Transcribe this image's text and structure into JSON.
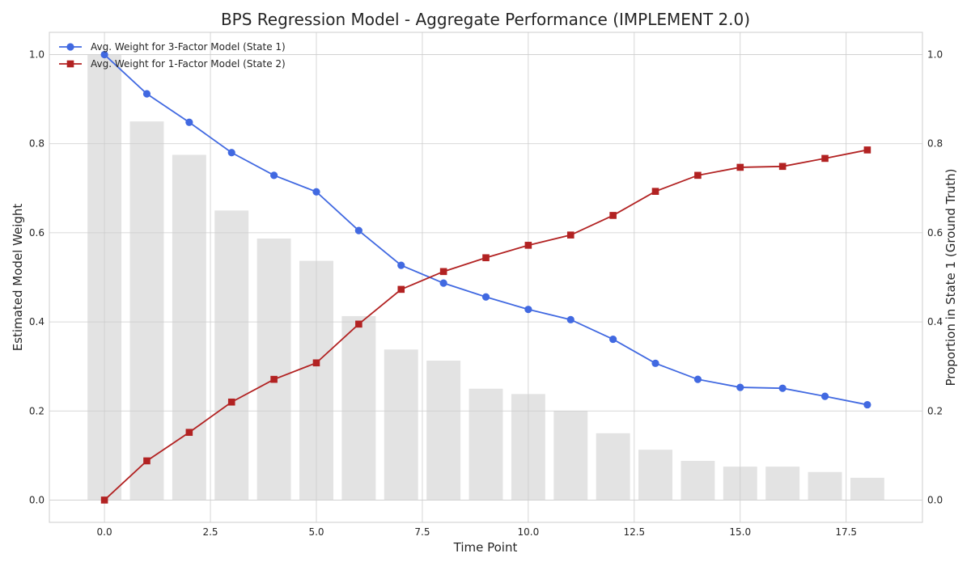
{
  "chart_data": {
    "type": "bar+line",
    "title": "BPS Regression Model - Aggregate Performance (IMPLEMENT 2.0)",
    "xlabel": "Time Point",
    "ylabel": "Estimated Model Weight",
    "ylabel_right": "Proportion in State 1 (Ground Truth)",
    "xlim": [
      -1.3,
      19.3
    ],
    "ylim": [
      -0.05,
      1.05
    ],
    "ylim_right": [
      -0.05,
      1.05
    ],
    "x_ticks": [
      0.0,
      2.5,
      5.0,
      7.5,
      10.0,
      12.5,
      15.0,
      17.5
    ],
    "x_tick_labels": [
      "0.0",
      "2.5",
      "5.0",
      "7.5",
      "10.0",
      "12.5",
      "15.0",
      "17.5"
    ],
    "y_ticks": [
      0.0,
      0.2,
      0.4,
      0.6,
      0.8,
      1.0
    ],
    "y_tick_labels": [
      "0.0",
      "0.2",
      "0.4",
      "0.6",
      "0.8",
      "1.0"
    ],
    "y_ticks_right": [
      0.0,
      0.2,
      0.4,
      0.6,
      0.8,
      1.0
    ],
    "y_tick_labels_right": [
      "0.0",
      "0.2",
      "0.4",
      "0.6",
      "0.8",
      "1.0"
    ],
    "grid": true,
    "legend_position": "top-left",
    "x": [
      0,
      1,
      2,
      3,
      4,
      5,
      6,
      7,
      8,
      9,
      10,
      11,
      12,
      13,
      14,
      15,
      16,
      17,
      18
    ],
    "bars": {
      "axis": "right",
      "color": "#e3e3e3",
      "values": [
        1.0,
        0.85,
        0.775,
        0.65,
        0.587,
        0.537,
        0.413,
        0.338,
        0.313,
        0.25,
        0.238,
        0.2,
        0.15,
        0.113,
        0.088,
        0.075,
        0.075,
        0.063,
        0.05
      ]
    },
    "series": [
      {
        "name": "Avg. Weight for 3-Factor Model (State 1)",
        "color": "#4169e1",
        "marker": "circle",
        "values": [
          1.0,
          0.912,
          0.848,
          0.78,
          0.729,
          0.692,
          0.605,
          0.527,
          0.487,
          0.456,
          0.428,
          0.405,
          0.361,
          0.307,
          0.271,
          0.253,
          0.251,
          0.233,
          0.214
        ]
      },
      {
        "name": "Avg. Weight for 1-Factor Model (State 2)",
        "color": "#b22222",
        "marker": "square",
        "values": [
          0.0,
          0.088,
          0.152,
          0.22,
          0.271,
          0.308,
          0.395,
          0.473,
          0.513,
          0.544,
          0.572,
          0.595,
          0.639,
          0.693,
          0.729,
          0.747,
          0.749,
          0.767,
          0.786
        ]
      }
    ]
  }
}
